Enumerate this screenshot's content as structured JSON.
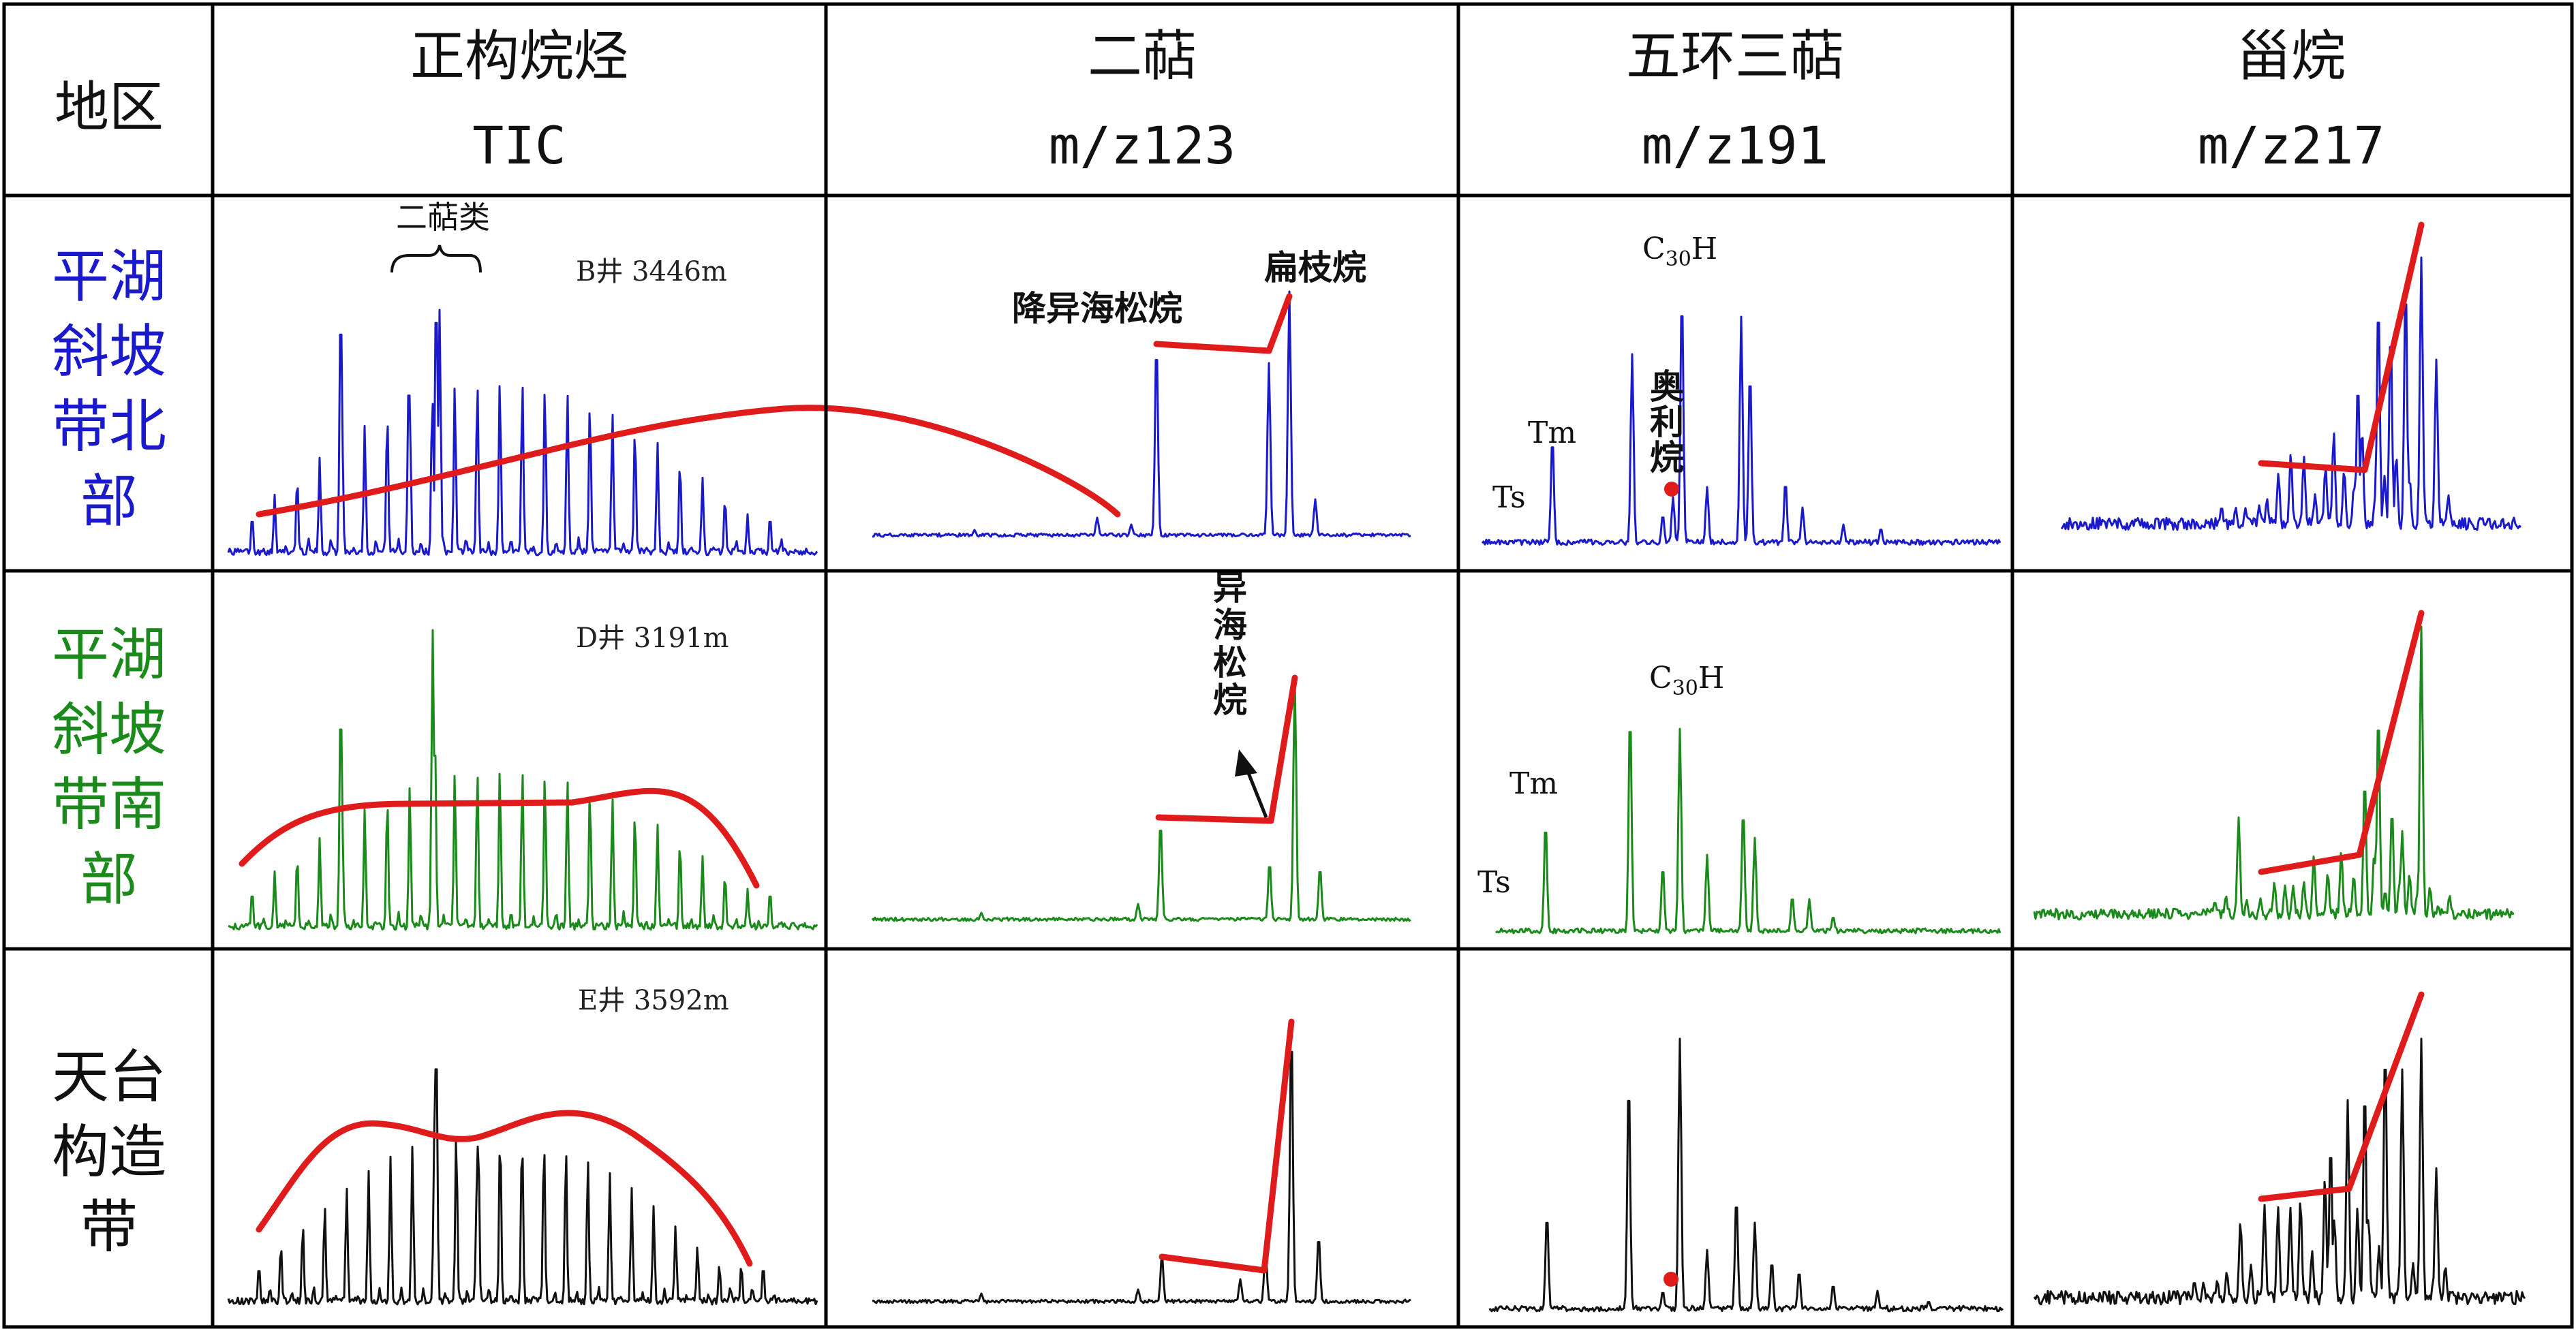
{
  "colors": {
    "grid": "#000000",
    "trend": "#e01b1b",
    "row_north": "#1a1acc",
    "row_south": "#1a8a1a",
    "row_tiantai": "#111111",
    "marker": "#e01b1b"
  },
  "header": {
    "region_label": "地区",
    "columns": [
      {
        "title": "正构烷烃",
        "subtitle": "TIC"
      },
      {
        "title": "二萜",
        "subtitle": "m/z123"
      },
      {
        "title": "五环三萜",
        "subtitle": "m/z191"
      },
      {
        "title": "甾烷",
        "subtitle": "m/z217"
      }
    ]
  },
  "rows": [
    {
      "region_lines": [
        "平湖",
        "斜坡",
        "带北",
        "部"
      ],
      "color_key": "row_north",
      "well_label": "B井 3446m",
      "tic_annotation": "二萜类",
      "diterpane_labels": [
        "降异海松烷",
        "扁枝烷"
      ],
      "hopane_labels": {
        "c30": "C",
        "c30_sub": "30",
        "c30_tail": "H",
        "tm": "Tm",
        "ts": "Ts",
        "oleanane": [
          "奥",
          "利",
          "烷"
        ]
      }
    },
    {
      "region_lines": [
        "平湖",
        "斜坡",
        "带南",
        "部"
      ],
      "color_key": "row_south",
      "well_label": "D井 3191m",
      "diterpane_labels": [
        "异",
        "海",
        "松",
        "烷"
      ],
      "hopane_labels": {
        "c30": "C",
        "c30_sub": "30",
        "c30_tail": "H",
        "tm": "Tm",
        "ts": "Ts"
      }
    },
    {
      "region_lines": [
        "天台",
        "构造",
        "带"
      ],
      "color_key": "row_tiantai",
      "well_label": "E井  3592m"
    }
  ]
}
